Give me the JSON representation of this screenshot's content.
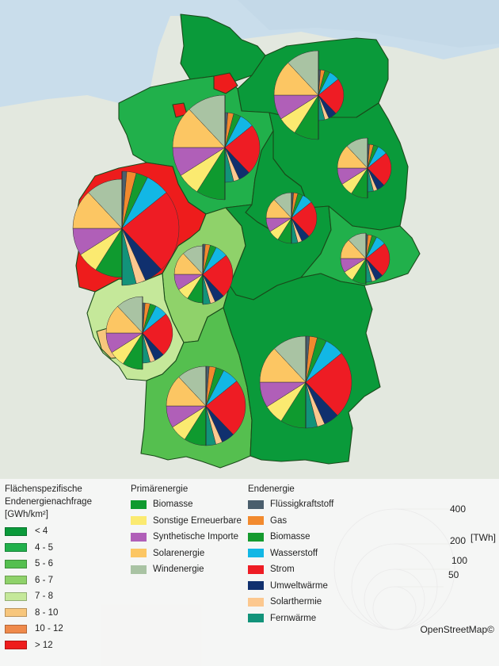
{
  "colors": {
    "sea": "#c9ddeb",
    "land_outside": "#e3e8df",
    "border": "#1a4a1a",
    "density_classes": [
      "#0a9a3a",
      "#21b04b",
      "#55bf4f",
      "#8fd26a",
      "#c5e89a",
      "#f7c67c",
      "#ef8a4b",
      "#ee1c1c"
    ],
    "primary": {
      "biomasse": "#0f9a2f",
      "sonstige": "#fbea70",
      "synthetisch": "#b05fb8",
      "solar": "#fcc663",
      "wind": "#a9c3a3"
    },
    "end": {
      "fluessig": "#4a5e6c",
      "gas": "#f28a2e",
      "biomasse": "#159a2e",
      "wasserstoff": "#12b7e5",
      "strom": "#ee1c24",
      "umwelt": "#10306e",
      "solarthermie": "#fcc88f",
      "fernwaerme": "#12937a"
    }
  },
  "legend": {
    "density": {
      "title_lines": [
        "Flächenspezifische",
        "Endenergienachfrage",
        "[GWh/km²]"
      ],
      "items": [
        "< 4",
        "4 -  5",
        "5 - 6",
        "6 - 7",
        "7 - 8",
        "8 - 10",
        "10 - 12",
        "> 12"
      ]
    },
    "primary": {
      "title": "Primärenergie",
      "items": [
        {
          "label": "Biomasse",
          "color_key": "biomasse"
        },
        {
          "label": "Sonstige Erneuerbare",
          "color_key": "sonstige"
        },
        {
          "label": "Synthetische Importe",
          "color_key": "synthetisch"
        },
        {
          "label": "Solarenergie",
          "color_key": "solar"
        },
        {
          "label": "Windenergie",
          "color_key": "wind"
        }
      ]
    },
    "end": {
      "title": "Endenergie",
      "items": [
        {
          "label": "Flüssigkraftstoff",
          "color_key": "fluessig"
        },
        {
          "label": "Gas",
          "color_key": "gas"
        },
        {
          "label": "Biomasse",
          "color_key": "biomasse"
        },
        {
          "label": "Wasserstoff",
          "color_key": "wasserstoff"
        },
        {
          "label": "Strom",
          "color_key": "strom"
        },
        {
          "label": "Umweltwärme",
          "color_key": "umwelt"
        },
        {
          "label": "Solarthermie",
          "color_key": "solarthermie"
        },
        {
          "label": "Fernwärme",
          "color_key": "fernwaerme"
        }
      ]
    },
    "size": {
      "values": [
        "400",
        "200",
        "100",
        "50"
      ],
      "unit": "[TWh]"
    }
  },
  "credit": "OpenStreetMap©",
  "regions": [
    {
      "name": "Schleswig-Holstein",
      "density_class": 0
    },
    {
      "name": "Mecklenburg-Vorpommern",
      "density_class": 0
    },
    {
      "name": "Hamburg",
      "density_class": 7
    },
    {
      "name": "Bremen",
      "density_class": 7
    },
    {
      "name": "Niedersachsen",
      "density_class": 1
    },
    {
      "name": "Berlin",
      "density_class": 7
    },
    {
      "name": "Brandenburg",
      "density_class": 0
    },
    {
      "name": "Sachsen-Anhalt",
      "density_class": 0
    },
    {
      "name": "Nordrhein-Westfalen",
      "density_class": 7
    },
    {
      "name": "Hessen",
      "density_class": 3
    },
    {
      "name": "Thüringen",
      "density_class": 0
    },
    {
      "name": "Sachsen",
      "density_class": 1
    },
    {
      "name": "Rheinland-Pfalz",
      "density_class": 4
    },
    {
      "name": "Saarland",
      "density_class": 5
    },
    {
      "name": "Baden-Württemberg",
      "density_class": 2
    },
    {
      "name": "Bayern",
      "density_class": 0
    }
  ]
}
